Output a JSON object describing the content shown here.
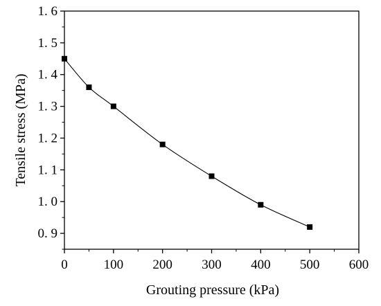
{
  "chart_data": {
    "type": "line",
    "title": "",
    "xlabel": "Grouting pressure (kPa)",
    "ylabel": "Tensile stress (MPa)",
    "xlim": [
      0,
      600
    ],
    "ylim": [
      0.85,
      1.6
    ],
    "x_ticks": [
      "0",
      "100",
      "200",
      "300",
      "400",
      "500",
      "600"
    ],
    "y_ticks": [
      "0. 9",
      "1. 0",
      "1. 1",
      "1. 2",
      "1. 3",
      "1. 4",
      "1. 5",
      "1. 6"
    ],
    "grid": false,
    "legend": "none",
    "series": [
      {
        "marker": "square",
        "color": "#000000",
        "x": [
          0,
          50,
          100,
          200,
          300,
          400,
          500
        ],
        "y": [
          1.45,
          1.36,
          1.3,
          1.18,
          1.08,
          0.99,
          0.92
        ],
        "fit": "smooth-curve"
      }
    ]
  }
}
